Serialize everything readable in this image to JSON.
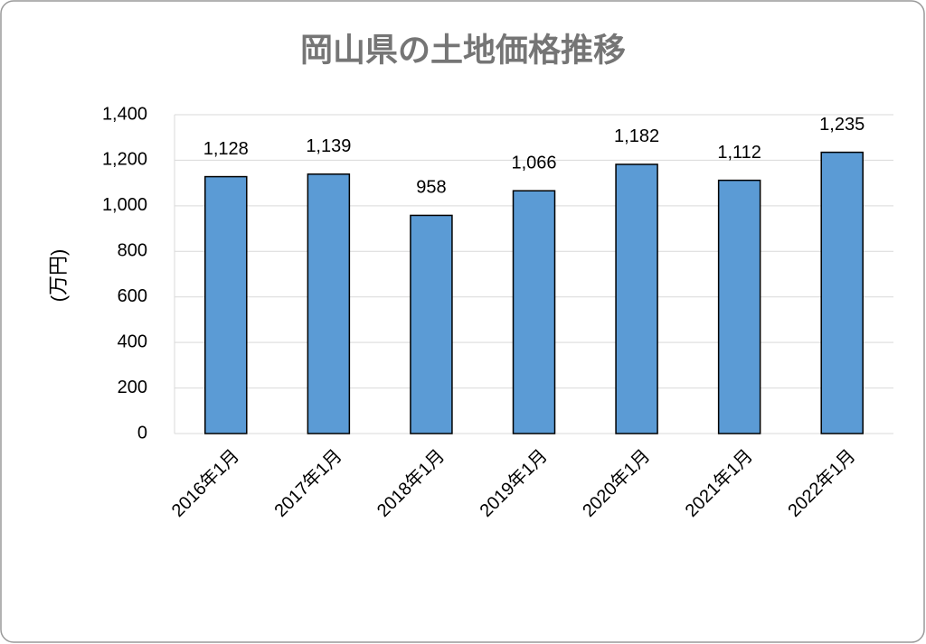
{
  "chart_data": {
    "type": "bar",
    "title": "岡山県の土地価格推移",
    "y_label": "(万円)",
    "categories": [
      "2016年1月",
      "2017年1月",
      "2018年1月",
      "2019年1月",
      "2020年1月",
      "2021年1月",
      "2022年1月"
    ],
    "values": [
      1128,
      1139,
      958,
      1066,
      1182,
      1112,
      1235
    ],
    "value_labels": [
      "1,128",
      "1,139",
      "958",
      "1,066",
      "1,182",
      "1,112",
      "1,235"
    ],
    "color": "#5b9bd5",
    "ylim": [
      0,
      1400
    ],
    "yticks": [
      0,
      200,
      400,
      600,
      800,
      {
        "value": 1000,
        "label": "1,000"
      },
      {
        "value": 1200,
        "label": "1,200"
      },
      {
        "value": 1400,
        "label": "1,400"
      }
    ],
    "grid": true
  }
}
